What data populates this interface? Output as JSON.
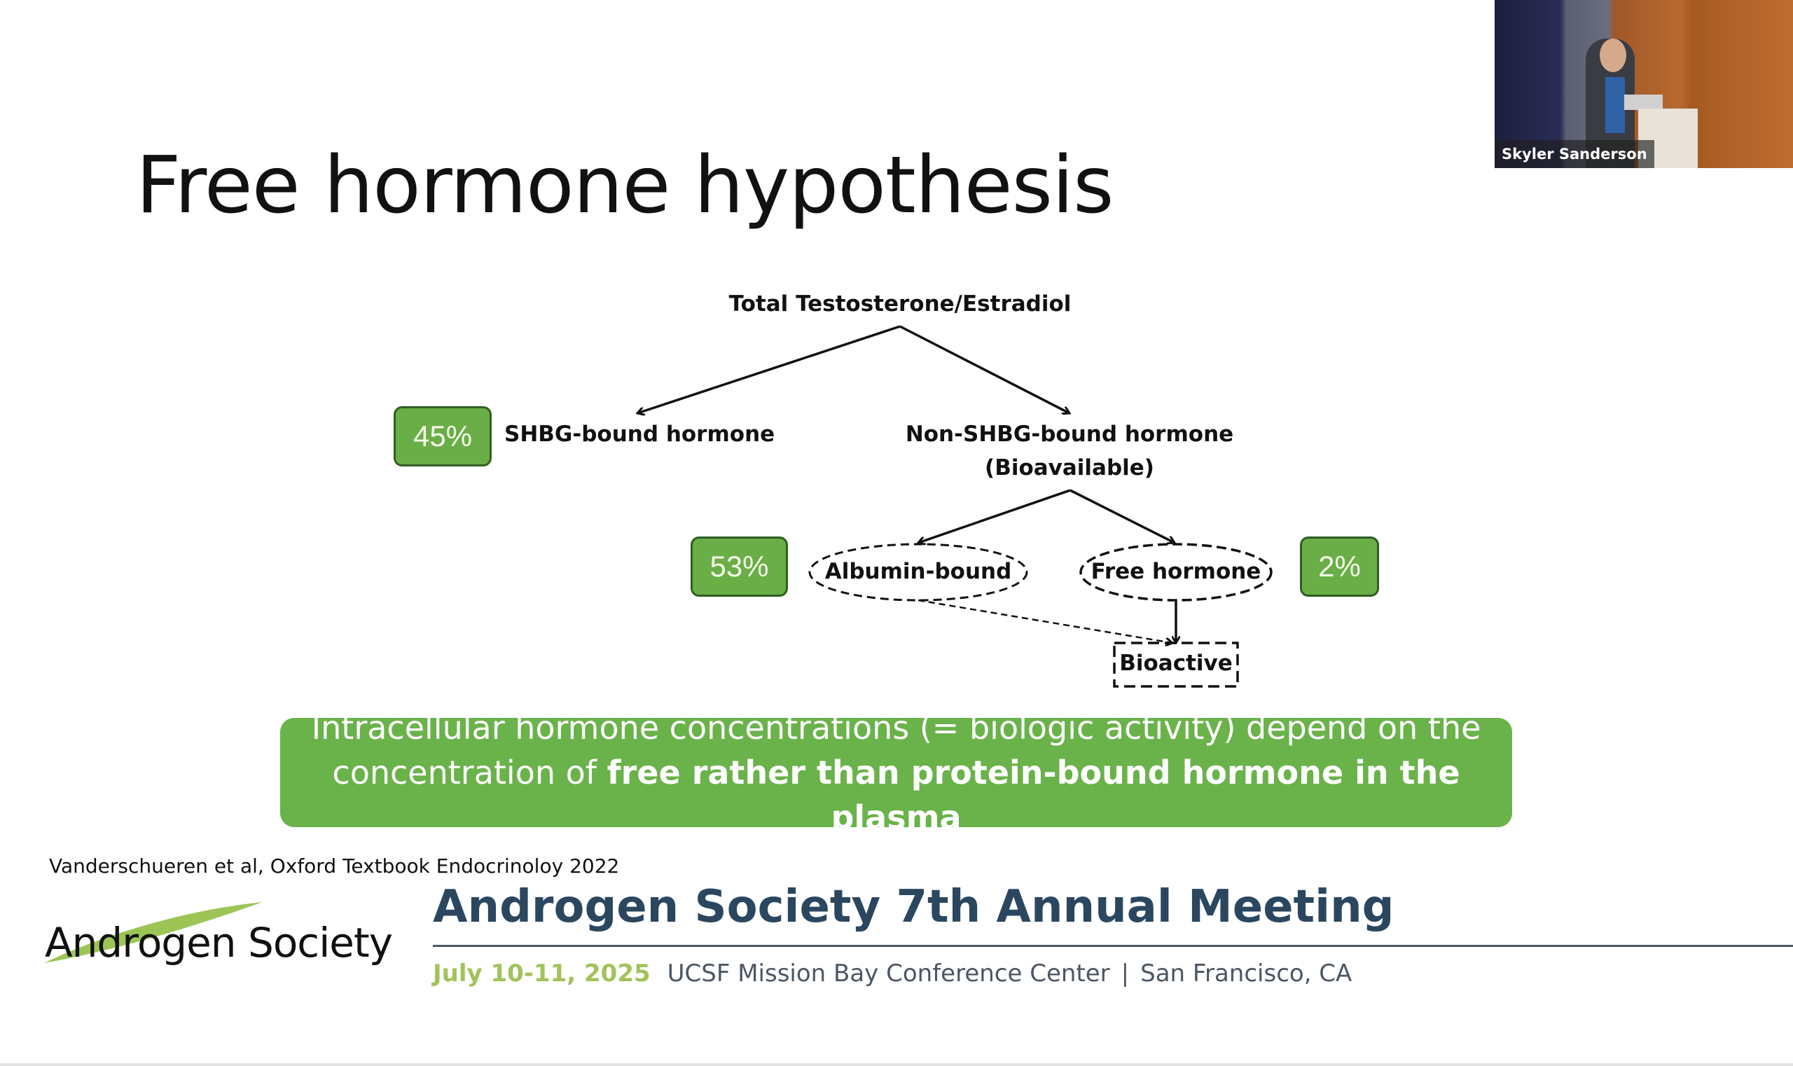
{
  "slide": {
    "title": "Free hormone hypothesis",
    "diagram": {
      "root": "Total Testosterone/Estradiol",
      "shbg_bound": {
        "label": "SHBG-bound hormone",
        "percent": "45%"
      },
      "non_shbg": {
        "label": "Non-SHBG-bound hormone",
        "sublabel": "(Bioavailable)"
      },
      "albumin_bound": {
        "label": "Albumin-bound",
        "percent": "53%"
      },
      "free_hormone": {
        "label": "Free hormone",
        "percent": "2%"
      },
      "bioactive": {
        "label": "Bioactive"
      }
    },
    "banner": {
      "line1": "Intracellular hormone concentrations (= biologic activity) depend on the",
      "line2_prefix": "concentration of ",
      "line2_bold": "free rather than protein-bound hormone in the plasma"
    },
    "citation": "Vanderschueren et al, Oxford Textbook Endocrinoloy 2022"
  },
  "footer": {
    "logo_text": "Androgen Society",
    "meeting_title": "Androgen Society 7th Annual Meeting",
    "date": "July 10-11, 2025",
    "venue": "UCSF Mission Bay Conference Center",
    "separator": "|",
    "location": "San Francisco, CA"
  },
  "video": {
    "speaker_name": "Skyler Sanderson"
  },
  "colors": {
    "green_box": "#6aae47",
    "green_border": "#2f5e22",
    "banner": "#6ab24a",
    "meeting_title": "#2b4760",
    "date": "#a2c25c"
  }
}
